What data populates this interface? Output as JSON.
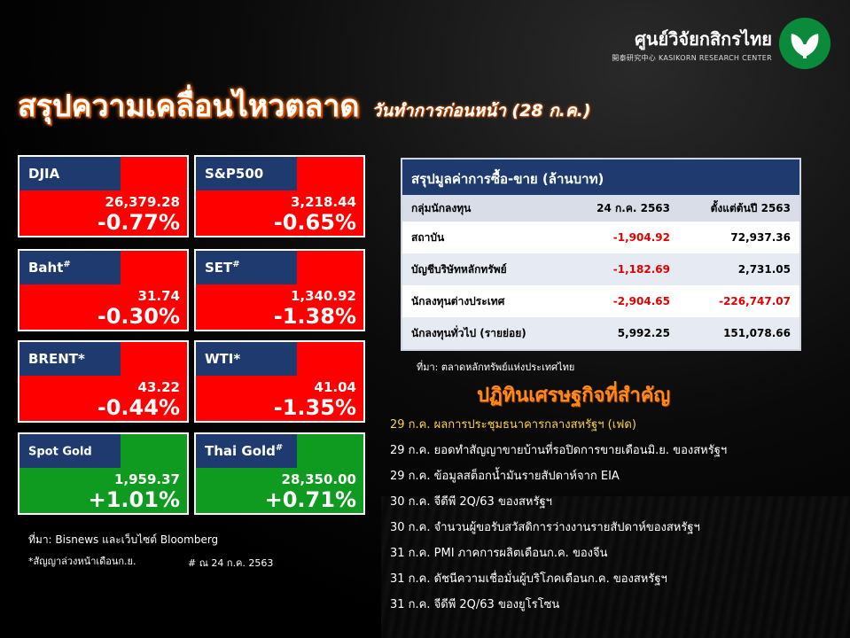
{
  "logo": {
    "name_th": "ศูนย์วิจัยกสิกรไทย",
    "name_en": "開泰研究中心 KASIKORN RESEARCH CENTER"
  },
  "title": {
    "main": "สรุปความเคลื่อนไหวตลาด",
    "sub": "วันทำการก่อนหน้า (28 ก.ค.)"
  },
  "tiles": [
    {
      "label": "DJIA",
      "sup": "",
      "price": "26,379.28",
      "change": "-0.77%",
      "color": "red"
    },
    {
      "label": "S&P500",
      "sup": "",
      "price": "3,218.44",
      "change": "-0.65%",
      "color": "red"
    },
    {
      "label": "Baht",
      "sup": "#",
      "price": "31.74",
      "change": "-0.30%",
      "color": "red"
    },
    {
      "label": "SET",
      "sup": "#",
      "price": "1,340.92",
      "change": "-1.38%",
      "color": "red"
    },
    {
      "label": "BRENT*",
      "sup": "",
      "price": "43.22",
      "change": "-0.44%",
      "color": "red"
    },
    {
      "label": "WTI*",
      "sup": "",
      "price": "41.04",
      "change": "-1.35%",
      "color": "red"
    },
    {
      "label": "Spot Gold",
      "sup": "",
      "price": "1,959.37",
      "change": "+1.01%",
      "color": "green"
    },
    {
      "label": "Thai Gold",
      "sup": "#",
      "price": "28,350.00",
      "change": "+0.71%",
      "color": "green"
    }
  ],
  "notes": {
    "source": "ที่มา: Bisnews และเว็บไซต์ Bloomberg",
    "futures": "*สัญญาล่วงหน้าเดือนก.ย.",
    "asof": "# ณ 24 ก.ค. 2563"
  },
  "table": {
    "title": "สรุปมูลค่าการซื้อ-ขาย (ล้านบาท)",
    "headers": [
      "กลุ่มนักลงทุน",
      "24 ก.ค. 2563",
      "ตั้งแต่ต้นปี 2563"
    ],
    "rows": [
      {
        "group": "สถาบัน",
        "day": "-1,904.92",
        "ytd": "72,937.36"
      },
      {
        "group": "บัญชีบริษัทหลักทรัพย์",
        "day": "-1,182.69",
        "ytd": "2,731.05"
      },
      {
        "group": "นักลงทุนต่างประเทศ",
        "day": "-2,904.65",
        "ytd": "-226,747.07"
      },
      {
        "group": "นักลงทุนทั่วไป (รายย่อย)",
        "day": "5,992.25",
        "ytd": "151,078.66"
      }
    ],
    "source": "ที่มา: ตลาดหลักทรัพย์แห่งประเทศไทย"
  },
  "events": {
    "title": "ปฏิทินเศรษฐกิจที่สำคัญ",
    "items": [
      "29 ก.ค. ผลการประชุมธนาคารกลางสหรัฐฯ (เฟด)",
      "29 ก.ค. ยอดทำสัญญาขายบ้านที่รอปิดการขายเดือนมิ.ย. ของสหรัฐฯ",
      "29 ก.ค. ข้อมูลสต็อกน้ำมันรายสัปดาห์จาก EIA",
      "30 ก.ค. จีดีพี 2Q/63 ของสหรัฐฯ",
      "30 ก.ค. จำนวนผู้ขอรับสวัสดิการว่างงานรายสัปดาห์ของสหรัฐฯ",
      "31 ก.ค. PMI ภาคการผลิตเดือนก.ค. ของจีน",
      "31 ก.ค. ดัชนีความเชื่อมั่นผู้บริโภคเดือนก.ค. ของสหรัฐฯ",
      "31 ก.ค. จีดีพี 2Q/63 ของยูโรโซน"
    ]
  }
}
